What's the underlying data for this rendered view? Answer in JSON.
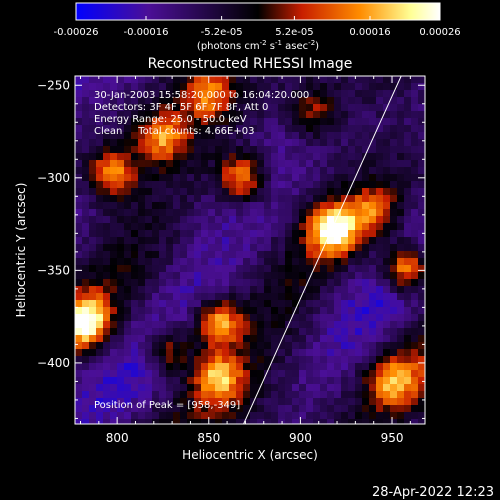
{
  "chart_data": {
    "type": "heatmap",
    "title": "Reconstructed RHESSI Image",
    "xlabel": "Heliocentric X (arcsec)",
    "ylabel": "Heliocentric Y (arcsec)",
    "xlim": [
      777,
      968
    ],
    "ylim": [
      -433,
      -245
    ],
    "x_ticks": [
      800,
      850,
      900,
      950
    ],
    "y_ticks": [
      -250,
      -300,
      -350,
      -400
    ],
    "colorbar": {
      "range": [
        -0.00026,
        0.00026
      ],
      "tick_labels": [
        "-0.00026",
        "-0.00016",
        "-5.2e-05",
        "5.2e-05",
        "0.00016",
        "0.00026"
      ],
      "tick_values": [
        -0.00026,
        -0.00016,
        -5.2e-05,
        5.2e-05,
        0.00016,
        0.00026
      ],
      "unit_main": "(photons cm",
      "unit_sup1": "-2",
      "unit_mid1": " s",
      "unit_sup2": "-1",
      "unit_mid2": " asec",
      "unit_sup3": "-2",
      "unit_end": ")",
      "colors": [
        "#0000ff",
        "#4b0f96",
        "#000000",
        "#c81e00",
        "#ff8c00",
        "#ffff96",
        "#ffffff"
      ]
    },
    "annotations": [
      "30-Jan-2003 15:58:20.000 to 16:04:20.000",
      "Detectors: 3F 4F 5F 6F 7F 8F, Att 0",
      "Energy Range: 25.0 - 50.0 keV",
      "Clean     Total counts: 4.66E+03"
    ],
    "peak_label": "Position of Peak = [958,-349]",
    "limb_line": [
      [
        869,
        -433
      ],
      [
        955,
        -245
      ]
    ],
    "bright_sources": [
      {
        "x": 918,
        "y": -328,
        "intensity": 1.0
      },
      {
        "x": 958,
        "y": -349,
        "intensity": 1.0
      },
      {
        "x": 783,
        "y": -378,
        "intensity": 0.95
      },
      {
        "x": 868,
        "y": -300,
        "intensity": 0.8
      },
      {
        "x": 855,
        "y": -378,
        "intensity": 0.85
      },
      {
        "x": 828,
        "y": -393,
        "intensity": 0.65
      },
      {
        "x": 855,
        "y": -408,
        "intensity": 0.7
      },
      {
        "x": 797,
        "y": -298,
        "intensity": 0.7
      },
      {
        "x": 825,
        "y": -278,
        "intensity": 0.6
      },
      {
        "x": 950,
        "y": -410,
        "intensity": 0.6
      },
      {
        "x": 908,
        "y": -265,
        "intensity": 0.45
      },
      {
        "x": 940,
        "y": -318,
        "intensity": 0.5
      },
      {
        "x": 850,
        "y": -255,
        "intensity": 0.55
      }
    ]
  },
  "footer": {
    "timestamp": "28-Apr-2022 12:23"
  }
}
